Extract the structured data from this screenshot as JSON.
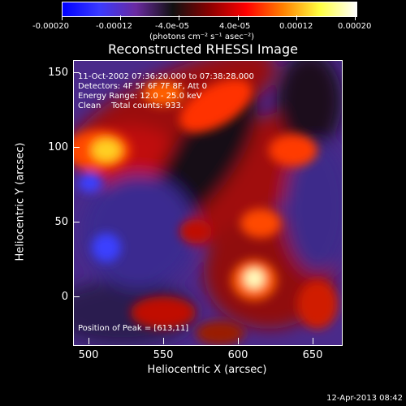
{
  "colorbar": {
    "ticks": [
      "-0.00020",
      "-0.00012",
      "-4.0e-05",
      "4.0e-05",
      "0.00012",
      "0.00020"
    ],
    "unit": "(photons cm⁻² s⁻¹ asec⁻²)",
    "gradient_stops": [
      "#0000ff",
      "#3a3aff",
      "#6a2aa0",
      "#111111",
      "#8a0000",
      "#ff0000",
      "#ff8000",
      "#ffff40",
      "#ffffff"
    ]
  },
  "plot": {
    "title": "Reconstructed RHESSI Image",
    "xlabel": "Heliocentric X (arcsec)",
    "ylabel": "Heliocentric Y (arcsec)",
    "xticks": [
      "500",
      "550",
      "600",
      "650"
    ],
    "yticks": [
      "150",
      "100",
      "50",
      "0"
    ],
    "annotations": [
      "11-Oct-2002 07:36:20.000 to 07:38:28.000",
      "Detectors: 4F 5F 6F 7F 8F, Att 0",
      "Energy Range: 12.0 - 25.0 keV",
      "Clean    Total counts: 933."
    ],
    "peak_text": "Position of Peak = [613,11]"
  },
  "footer": {
    "timestamp": "12-Apr-2013 08:42"
  }
}
